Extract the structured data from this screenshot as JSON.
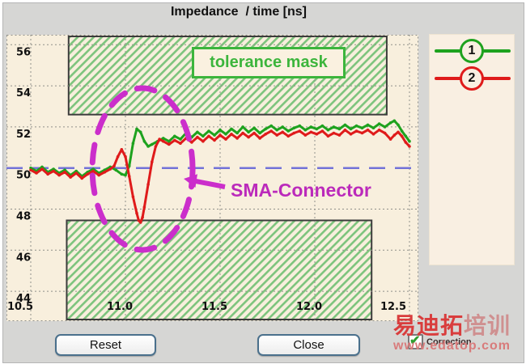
{
  "window": {
    "title": "Impedance  / time [ns]"
  },
  "chart_data": {
    "type": "line",
    "title": "Impedance  / time [ns]",
    "x_axis": {
      "min": 10.5,
      "max": 12.55,
      "ticks": [
        10.5,
        11.0,
        11.5,
        12.0,
        12.5
      ],
      "tick_labels": [
        "10.5",
        "11.0",
        "11.5",
        "12.0",
        "12.5"
      ]
    },
    "y_axis": {
      "min": 42.5,
      "max": 56.6,
      "ticks": [
        56,
        54,
        52,
        50,
        48,
        46,
        44
      ],
      "tick_labels": [
        "56",
        "54",
        "52",
        "50",
        "48",
        "46",
        "44"
      ]
    },
    "grid": "dotted",
    "reference_line": {
      "value": 50,
      "color": "#7272d8",
      "style": "long-dash"
    },
    "tolerance_masks": [
      {
        "side": "top",
        "t_start": 10.7,
        "t_end": 12.38,
        "z_edge": 52.6
      },
      {
        "side": "bottom",
        "t_start": 10.69,
        "t_end": 12.3,
        "z_edge": 47.45
      }
    ],
    "mask_colors": {
      "hatch": "#7dc47d",
      "border": "#3c3c3c",
      "background": "#f8efdd"
    },
    "annotations": {
      "tolerance_mask_label": "tolerance mask",
      "sma_connector_label": "SMA-Connector",
      "ellipse": {
        "t_center": 11.09,
        "z_center": 49.95,
        "color": "#cb2ecb"
      }
    },
    "series": [
      {
        "name": "1",
        "color": "#1ea21e",
        "points": [
          [
            10.5,
            50.0
          ],
          [
            10.53,
            49.85
          ],
          [
            10.56,
            50.05
          ],
          [
            10.59,
            49.8
          ],
          [
            10.62,
            49.95
          ],
          [
            10.65,
            49.75
          ],
          [
            10.68,
            49.9
          ],
          [
            10.71,
            49.65
          ],
          [
            10.74,
            49.85
          ],
          [
            10.77,
            49.6
          ],
          [
            10.8,
            49.8
          ],
          [
            10.83,
            49.95
          ],
          [
            10.86,
            49.75
          ],
          [
            10.89,
            49.9
          ],
          [
            10.92,
            50.05
          ],
          [
            10.95,
            49.9
          ],
          [
            10.98,
            49.7
          ],
          [
            11.0,
            49.65
          ],
          [
            11.02,
            50.1
          ],
          [
            11.04,
            51.2
          ],
          [
            11.06,
            51.9
          ],
          [
            11.08,
            51.75
          ],
          [
            11.1,
            51.3
          ],
          [
            11.12,
            51.05
          ],
          [
            11.14,
            51.15
          ],
          [
            11.17,
            51.3
          ],
          [
            11.2,
            51.45
          ],
          [
            11.23,
            51.3
          ],
          [
            11.26,
            51.55
          ],
          [
            11.29,
            51.4
          ],
          [
            11.32,
            51.7
          ],
          [
            11.35,
            51.5
          ],
          [
            11.38,
            51.75
          ],
          [
            11.41,
            51.55
          ],
          [
            11.44,
            51.8
          ],
          [
            11.47,
            51.6
          ],
          [
            11.5,
            51.85
          ],
          [
            11.53,
            51.65
          ],
          [
            11.56,
            51.9
          ],
          [
            11.59,
            51.7
          ],
          [
            11.62,
            52.0
          ],
          [
            11.65,
            51.75
          ],
          [
            11.68,
            51.95
          ],
          [
            11.71,
            51.7
          ],
          [
            11.74,
            51.9
          ],
          [
            11.77,
            52.05
          ],
          [
            11.8,
            51.85
          ],
          [
            11.83,
            52.0
          ],
          [
            11.86,
            51.8
          ],
          [
            11.89,
            51.95
          ],
          [
            11.92,
            52.05
          ],
          [
            11.95,
            51.85
          ],
          [
            11.98,
            52.0
          ],
          [
            12.01,
            51.9
          ],
          [
            12.04,
            52.05
          ],
          [
            12.07,
            51.85
          ],
          [
            12.1,
            52.0
          ],
          [
            12.13,
            51.9
          ],
          [
            12.16,
            52.1
          ],
          [
            12.19,
            51.9
          ],
          [
            12.22,
            52.05
          ],
          [
            12.25,
            51.95
          ],
          [
            12.28,
            52.1
          ],
          [
            12.31,
            51.95
          ],
          [
            12.34,
            52.15
          ],
          [
            12.37,
            52.0
          ],
          [
            12.4,
            52.2
          ],
          [
            12.42,
            52.3
          ],
          [
            12.44,
            52.1
          ],
          [
            12.46,
            51.8
          ],
          [
            12.48,
            51.55
          ],
          [
            12.5,
            51.3
          ]
        ]
      },
      {
        "name": "2",
        "color": "#df1b1b",
        "points": [
          [
            10.5,
            49.9
          ],
          [
            10.53,
            49.75
          ],
          [
            10.56,
            49.95
          ],
          [
            10.59,
            49.7
          ],
          [
            10.62,
            49.85
          ],
          [
            10.65,
            49.65
          ],
          [
            10.68,
            49.8
          ],
          [
            10.71,
            49.55
          ],
          [
            10.74,
            49.75
          ],
          [
            10.77,
            49.5
          ],
          [
            10.8,
            49.7
          ],
          [
            10.83,
            49.85
          ],
          [
            10.86,
            49.65
          ],
          [
            10.89,
            49.8
          ],
          [
            10.92,
            49.95
          ],
          [
            10.94,
            50.1
          ],
          [
            10.96,
            50.55
          ],
          [
            10.98,
            50.9
          ],
          [
            11.0,
            50.55
          ],
          [
            11.02,
            49.6
          ],
          [
            11.04,
            48.6
          ],
          [
            11.06,
            47.8
          ],
          [
            11.07,
            47.45
          ],
          [
            11.08,
            47.35
          ],
          [
            11.09,
            47.6
          ],
          [
            11.1,
            48.1
          ],
          [
            11.12,
            49.2
          ],
          [
            11.14,
            50.3
          ],
          [
            11.16,
            51.05
          ],
          [
            11.18,
            51.4
          ],
          [
            11.2,
            51.3
          ],
          [
            11.23,
            51.15
          ],
          [
            11.26,
            51.35
          ],
          [
            11.29,
            51.2
          ],
          [
            11.32,
            51.45
          ],
          [
            11.35,
            51.25
          ],
          [
            11.38,
            51.5
          ],
          [
            11.41,
            51.3
          ],
          [
            11.44,
            51.55
          ],
          [
            11.47,
            51.35
          ],
          [
            11.5,
            51.6
          ],
          [
            11.53,
            51.4
          ],
          [
            11.56,
            51.65
          ],
          [
            11.59,
            51.45
          ],
          [
            11.62,
            51.7
          ],
          [
            11.65,
            51.5
          ],
          [
            11.68,
            51.7
          ],
          [
            11.71,
            51.45
          ],
          [
            11.74,
            51.65
          ],
          [
            11.77,
            51.8
          ],
          [
            11.8,
            51.6
          ],
          [
            11.83,
            51.75
          ],
          [
            11.86,
            51.55
          ],
          [
            11.89,
            51.7
          ],
          [
            11.92,
            51.8
          ],
          [
            11.95,
            51.6
          ],
          [
            11.98,
            51.75
          ],
          [
            12.01,
            51.65
          ],
          [
            12.04,
            51.8
          ],
          [
            12.07,
            51.55
          ],
          [
            12.1,
            51.7
          ],
          [
            12.13,
            51.6
          ],
          [
            12.16,
            51.85
          ],
          [
            12.19,
            51.65
          ],
          [
            12.22,
            51.8
          ],
          [
            12.25,
            51.7
          ],
          [
            12.28,
            51.85
          ],
          [
            12.31,
            51.65
          ],
          [
            12.34,
            51.85
          ],
          [
            12.37,
            51.7
          ],
          [
            12.4,
            51.4
          ],
          [
            12.42,
            51.6
          ],
          [
            12.44,
            51.75
          ],
          [
            12.46,
            51.55
          ],
          [
            12.48,
            51.25
          ],
          [
            12.5,
            51.05
          ]
        ]
      }
    ]
  },
  "legend": {
    "items": [
      {
        "label": "1",
        "color": "#1ea21e"
      },
      {
        "label": "2",
        "color": "#df1b1b"
      }
    ]
  },
  "buttons": {
    "reset": "Reset",
    "close": "Close"
  },
  "correction": {
    "label": "Correction",
    "checked": true,
    "check_glyph": "✔"
  },
  "watermark": {
    "line1_strong": "易迪拓",
    "line1_weak": "培训",
    "line2": "www.edatop.com"
  }
}
